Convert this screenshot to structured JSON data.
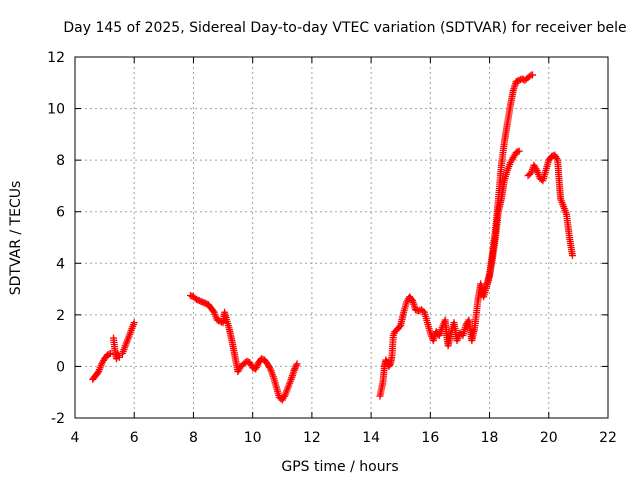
{
  "chart_data": {
    "type": "scatter",
    "title": "Day 145 of 2025, Sidereal Day-to-day VTEC variation (SDTVAR) for receiver bele",
    "xlabel": "GPS time / hours",
    "ylabel": "SDTVAR / TECUs",
    "xlim": [
      4,
      22
    ],
    "ylim": [
      -2,
      12
    ],
    "xticks": [
      4,
      6,
      8,
      10,
      12,
      14,
      16,
      18,
      20,
      22
    ],
    "yticks": [
      -2,
      0,
      2,
      4,
      6,
      8,
      10,
      12
    ],
    "grid": true,
    "marker": "+",
    "color": "#ff0000",
    "series": [
      {
        "name": "SDTVAR",
        "segments": [
          [
            [
              4.6,
              -0.5
            ],
            [
              4.7,
              -0.35
            ],
            [
              4.8,
              -0.2
            ],
            [
              4.9,
              0.1
            ],
            [
              5.0,
              0.3
            ],
            [
              5.1,
              0.45
            ],
            [
              5.2,
              0.5
            ]
          ],
          [
            [
              5.3,
              1.1
            ],
            [
              5.35,
              0.6
            ],
            [
              5.4,
              0.3
            ],
            [
              5.45,
              0.5
            ],
            [
              5.5,
              0.35
            ]
          ],
          [
            [
              5.6,
              0.5
            ],
            [
              5.7,
              0.8
            ],
            [
              5.8,
              1.1
            ],
            [
              5.9,
              1.4
            ],
            [
              6.0,
              1.7
            ]
          ],
          [
            [
              7.9,
              2.75
            ],
            [
              8.0,
              2.7
            ],
            [
              8.1,
              2.6
            ],
            [
              8.2,
              2.55
            ],
            [
              8.3,
              2.5
            ],
            [
              8.4,
              2.45
            ],
            [
              8.5,
              2.4
            ],
            [
              8.6,
              2.25
            ],
            [
              8.7,
              2.1
            ],
            [
              8.75,
              1.95
            ],
            [
              8.8,
              1.8
            ],
            [
              8.9,
              1.75
            ],
            [
              9.0,
              1.7
            ],
            [
              9.05,
              2.1
            ],
            [
              9.1,
              1.9
            ],
            [
              9.2,
              1.5
            ],
            [
              9.3,
              1.0
            ],
            [
              9.4,
              0.4
            ],
            [
              9.5,
              -0.2
            ],
            [
              9.6,
              0.0
            ],
            [
              9.7,
              0.1
            ],
            [
              9.8,
              0.2
            ],
            [
              9.9,
              0.15
            ],
            [
              10.0,
              -0.05
            ],
            [
              10.1,
              -0.1
            ],
            [
              10.2,
              0.15
            ],
            [
              10.3,
              0.3
            ],
            [
              10.4,
              0.25
            ],
            [
              10.5,
              0.1
            ],
            [
              10.6,
              -0.1
            ],
            [
              10.7,
              -0.4
            ],
            [
              10.8,
              -0.8
            ],
            [
              10.9,
              -1.2
            ],
            [
              11.0,
              -1.3
            ],
            [
              11.1,
              -1.1
            ],
            [
              11.2,
              -0.8
            ],
            [
              11.3,
              -0.5
            ],
            [
              11.4,
              -0.15
            ],
            [
              11.5,
              0.1
            ]
          ],
          [
            [
              14.3,
              -1.15
            ],
            [
              14.4,
              -0.6
            ],
            [
              14.45,
              0.0
            ],
            [
              14.5,
              0.25
            ],
            [
              14.55,
              0.15
            ],
            [
              14.6,
              0.0
            ],
            [
              14.65,
              0.1
            ],
            [
              14.7,
              0.35
            ],
            [
              14.75,
              1.2
            ],
            [
              14.8,
              1.35
            ],
            [
              14.9,
              1.45
            ],
            [
              15.0,
              1.6
            ],
            [
              15.1,
              2.1
            ],
            [
              15.2,
              2.5
            ],
            [
              15.3,
              2.7
            ],
            [
              15.4,
              2.55
            ],
            [
              15.5,
              2.2
            ],
            [
              15.6,
              2.15
            ],
            [
              15.7,
              2.2
            ],
            [
              15.8,
              2.1
            ],
            [
              15.9,
              1.7
            ],
            [
              16.0,
              1.3
            ],
            [
              16.1,
              1.0
            ],
            [
              16.2,
              1.35
            ],
            [
              16.3,
              1.2
            ],
            [
              16.4,
              1.5
            ],
            [
              16.5,
              1.8
            ],
            [
              16.55,
              1.2
            ],
            [
              16.6,
              0.8
            ],
            [
              16.7,
              1.3
            ],
            [
              16.8,
              1.7
            ],
            [
              16.9,
              1.0
            ],
            [
              17.0,
              1.3
            ],
            [
              17.1,
              1.2
            ],
            [
              17.2,
              1.6
            ],
            [
              17.3,
              1.8
            ],
            [
              17.4,
              1.0
            ],
            [
              17.5,
              1.5
            ],
            [
              17.6,
              2.5
            ],
            [
              17.7,
              3.2
            ],
            [
              17.8,
              2.7
            ],
            [
              17.9,
              3.1
            ],
            [
              18.0,
              3.5
            ],
            [
              18.1,
              4.2
            ],
            [
              18.2,
              5.0
            ],
            [
              18.3,
              6.0
            ],
            [
              18.4,
              6.5
            ],
            [
              18.5,
              7.2
            ],
            [
              18.6,
              7.6
            ],
            [
              18.7,
              7.9
            ],
            [
              18.8,
              8.1
            ],
            [
              18.9,
              8.3
            ],
            [
              19.0,
              8.35
            ]
          ],
          [
            [
              17.9,
              3.1
            ],
            [
              18.0,
              3.6
            ],
            [
              18.1,
              4.4
            ],
            [
              18.2,
              5.3
            ],
            [
              18.3,
              6.5
            ],
            [
              18.4,
              7.8
            ],
            [
              18.5,
              8.7
            ],
            [
              18.6,
              9.4
            ],
            [
              18.7,
              10.1
            ],
            [
              18.8,
              10.7
            ],
            [
              18.9,
              11.05
            ],
            [
              19.0,
              11.1
            ],
            [
              19.1,
              11.15
            ],
            [
              19.2,
              11.1
            ],
            [
              19.3,
              11.2
            ],
            [
              19.4,
              11.3
            ],
            [
              19.45,
              11.3
            ]
          ],
          [
            [
              19.3,
              7.4
            ],
            [
              19.4,
              7.5
            ],
            [
              19.5,
              7.8
            ],
            [
              19.6,
              7.6
            ],
            [
              19.7,
              7.3
            ],
            [
              19.8,
              7.2
            ],
            [
              19.9,
              7.6
            ],
            [
              20.0,
              8.0
            ],
            [
              20.1,
              8.15
            ],
            [
              20.2,
              8.2
            ],
            [
              20.3,
              8.0
            ],
            [
              20.35,
              7.2
            ],
            [
              20.4,
              6.5
            ],
            [
              20.5,
              6.2
            ],
            [
              20.6,
              5.9
            ],
            [
              20.7,
              5.0
            ],
            [
              20.8,
              4.3
            ]
          ]
        ]
      }
    ]
  }
}
